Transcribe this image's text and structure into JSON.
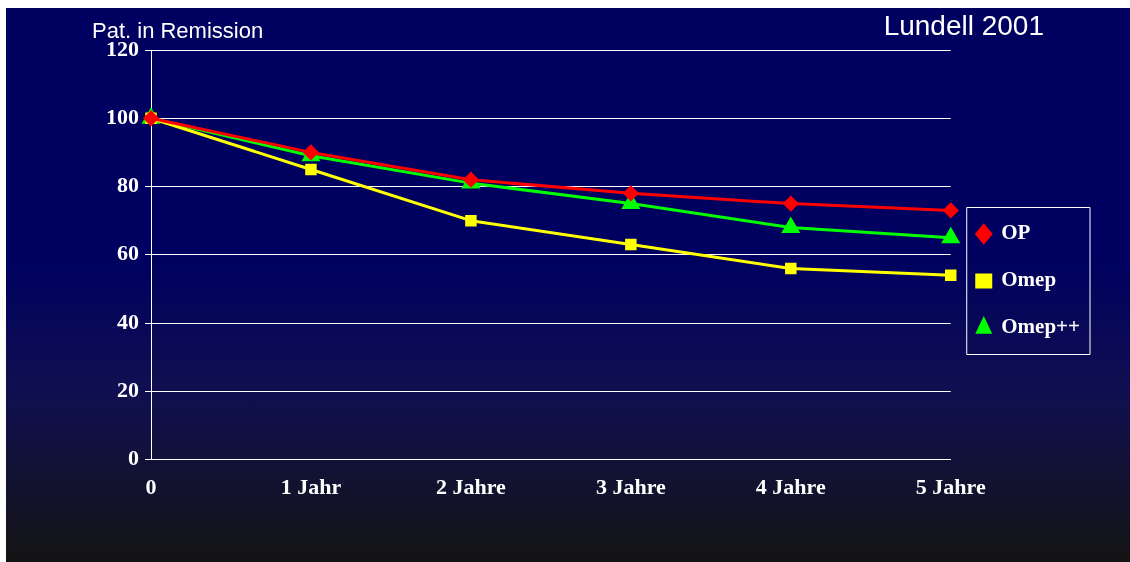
{
  "chart_data": {
    "type": "line",
    "title": "Lundell 2001",
    "ylabel": "Pat. in Remission",
    "categories": [
      "0",
      "1 Jahr",
      "2 Jahre",
      "3 Jahre",
      "4 Jahre",
      "5 Jahre"
    ],
    "series": [
      {
        "name": "OP",
        "color": "#ff0000",
        "marker": "diamond",
        "values": [
          100,
          90,
          82,
          78,
          75,
          73
        ]
      },
      {
        "name": "Omep",
        "color": "#ffff00",
        "marker": "square",
        "values": [
          100,
          85,
          70,
          63,
          56,
          54
        ]
      },
      {
        "name": "Omep++",
        "color": "#00ff00",
        "marker": "triangle",
        "values": [
          100,
          89,
          81,
          75,
          68,
          65
        ]
      }
    ],
    "ylim": [
      0,
      120
    ],
    "yticks": [
      0,
      20,
      40,
      60,
      80,
      100,
      120
    ],
    "grid": "y",
    "legend": "right",
    "line_style": "solid"
  }
}
